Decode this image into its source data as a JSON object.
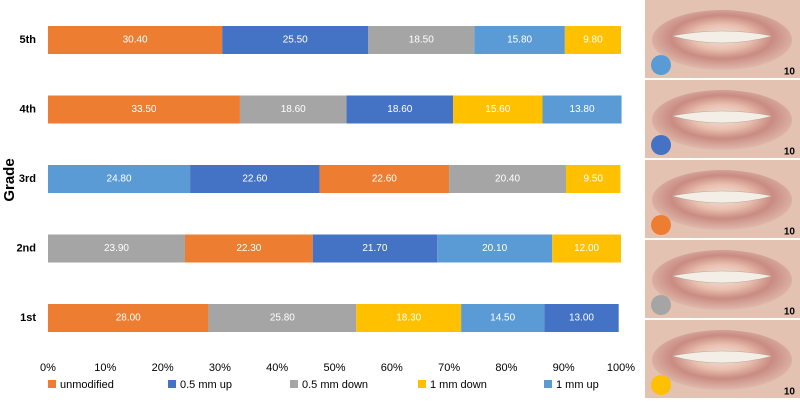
{
  "chart_data": {
    "type": "stacked-bar-horizontal",
    "y_label": "Grade",
    "series": [
      {
        "name": "unmodified",
        "color": "#ed7d31"
      },
      {
        "name": "0.5 mm up",
        "color": "#4472c4"
      },
      {
        "name": "0.5 mm down",
        "color": "#a5a5a5"
      },
      {
        "name": "1 mm down",
        "color": "#ffc000"
      },
      {
        "name": "1 mm up",
        "color": "#5b9bd5"
      }
    ],
    "rows": [
      {
        "category": "5th",
        "segments": [
          {
            "series": 0,
            "value": 30.4,
            "label": "30.40"
          },
          {
            "series": 1,
            "value": 25.5,
            "label": "25.50"
          },
          {
            "series": 2,
            "value": 18.5,
            "label": "18.50"
          },
          {
            "series": 4,
            "value": 15.8,
            "label": "15.80"
          },
          {
            "series": 3,
            "value": 9.8,
            "label": "9.80"
          }
        ]
      },
      {
        "category": "4th",
        "segments": [
          {
            "series": 0,
            "value": 33.5,
            "label": "33.50"
          },
          {
            "series": 2,
            "value": 18.6,
            "label": "18.60"
          },
          {
            "series": 1,
            "value": 18.6,
            "label": "18.60"
          },
          {
            "series": 3,
            "value": 15.6,
            "label": "15.60"
          },
          {
            "series": 4,
            "value": 13.8,
            "label": "13.80"
          }
        ]
      },
      {
        "category": "3rd",
        "segments": [
          {
            "series": 4,
            "value": 24.8,
            "label": "24.80"
          },
          {
            "series": 1,
            "value": 22.6,
            "label": "22.60"
          },
          {
            "series": 0,
            "value": 22.6,
            "label": "22.60"
          },
          {
            "series": 2,
            "value": 20.4,
            "label": "20.40"
          },
          {
            "series": 3,
            "value": 9.5,
            "label": "9.50"
          }
        ]
      },
      {
        "category": "2nd",
        "segments": [
          {
            "series": 2,
            "value": 23.9,
            "label": "23.90"
          },
          {
            "series": 0,
            "value": 22.3,
            "label": "22.30"
          },
          {
            "series": 1,
            "value": 21.7,
            "label": "21.70"
          },
          {
            "series": 4,
            "value": 20.1,
            "label": "20.10"
          },
          {
            "series": 3,
            "value": 12.0,
            "label": "12.00"
          }
        ]
      },
      {
        "category": "1st",
        "segments": [
          {
            "series": 0,
            "value": 28.0,
            "label": "28.00"
          },
          {
            "series": 2,
            "value": 25.8,
            "label": "25.80"
          },
          {
            "series": 3,
            "value": 18.3,
            "label": "18.30"
          },
          {
            "series": 4,
            "value": 14.5,
            "label": "14.50"
          },
          {
            "series": 1,
            "value": 13.0,
            "label": "13.00"
          }
        ]
      }
    ],
    "xlim": [
      0,
      100
    ],
    "xticks": [
      {
        "value": 0,
        "label": "0%"
      },
      {
        "value": 10,
        "label": "10%"
      },
      {
        "value": 20,
        "label": "20%"
      },
      {
        "value": 30,
        "label": "30%"
      },
      {
        "value": 40,
        "label": "40%"
      },
      {
        "value": 50,
        "label": "50%"
      },
      {
        "value": 60,
        "label": "60%"
      },
      {
        "value": 70,
        "label": "70%"
      },
      {
        "value": 80,
        "label": "80%"
      },
      {
        "value": 90,
        "label": "90%"
      },
      {
        "value": 100,
        "label": "100%"
      }
    ],
    "photos": [
      {
        "color": "#5b9bd5",
        "label": "10"
      },
      {
        "color": "#4472c4",
        "label": "10"
      },
      {
        "color": "#ed7d31",
        "label": "10"
      },
      {
        "color": "#a5a5a5",
        "label": "10"
      },
      {
        "color": "#ffc000",
        "label": "10"
      }
    ]
  }
}
